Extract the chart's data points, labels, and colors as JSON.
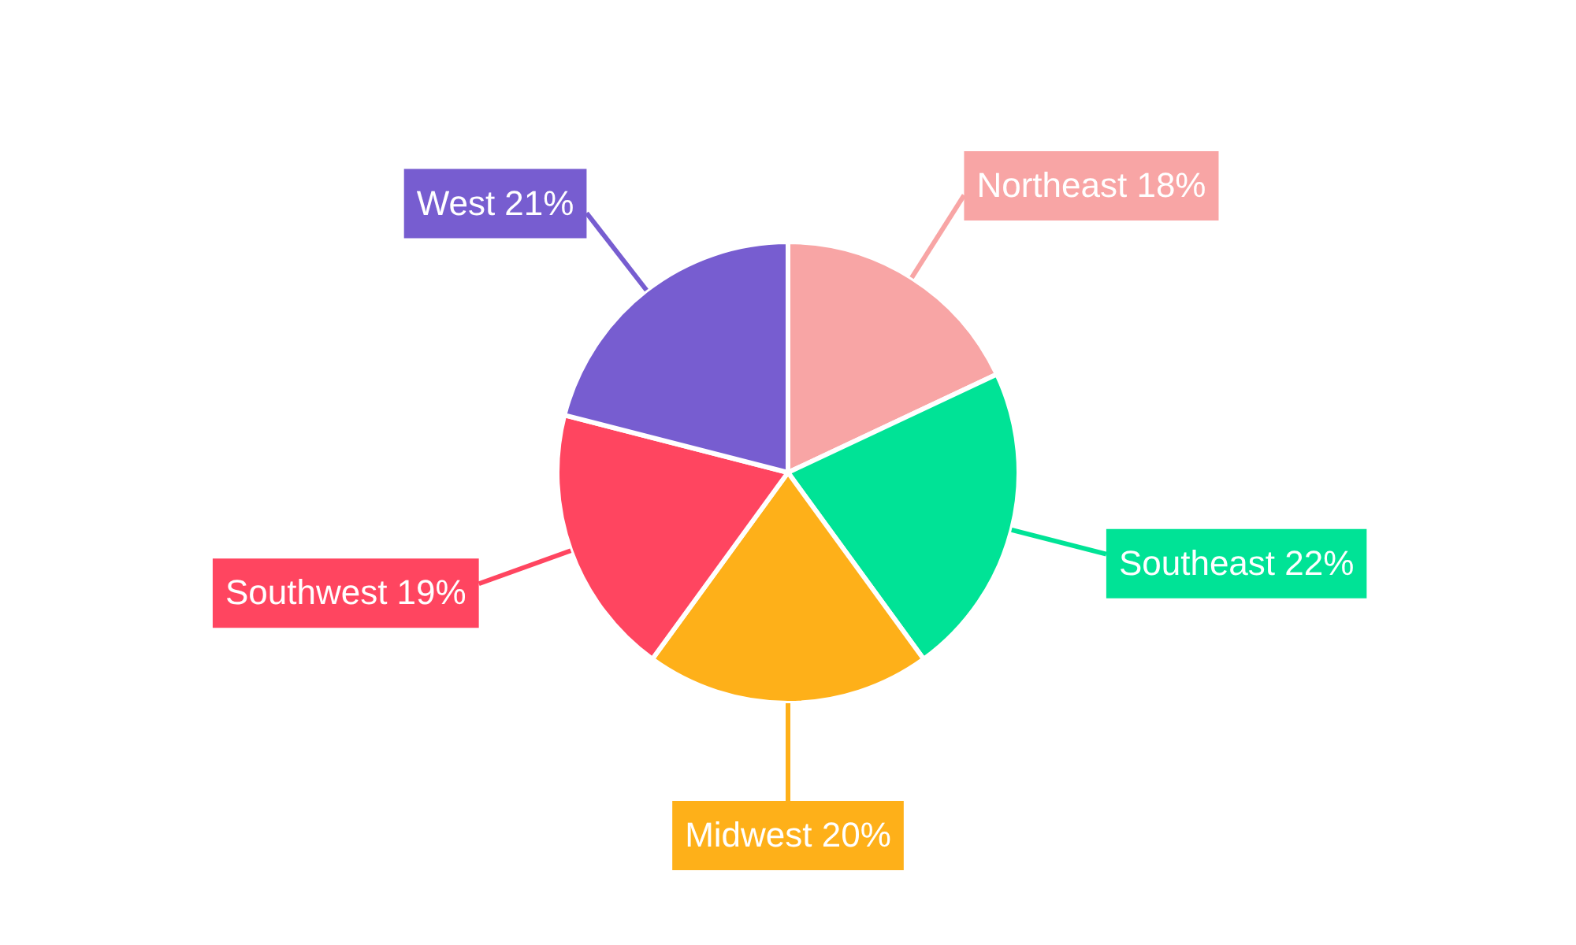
{
  "chart_data": {
    "type": "pie",
    "categories": [
      "Northeast",
      "Southeast",
      "Midwest",
      "Southwest",
      "West"
    ],
    "values": [
      18,
      22,
      20,
      19,
      21
    ],
    "value_labels": [
      "18%",
      "22%",
      "20%",
      "19%",
      "21%"
    ],
    "colors": [
      "#f8a5a5",
      "#00e396",
      "#feb019",
      "#ff4560",
      "#775dd0"
    ],
    "legend": false
  }
}
